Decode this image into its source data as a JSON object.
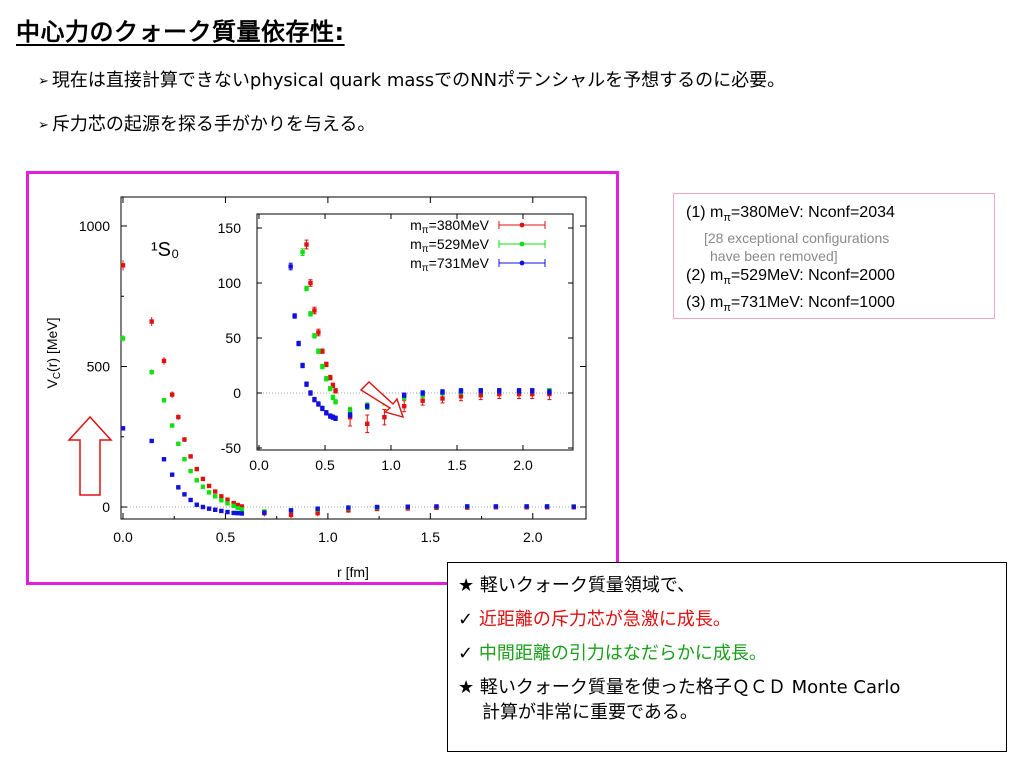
{
  "slide": {
    "title": "中心力のクォーク質量依存性:",
    "bullet_mark": "➢",
    "bullets": [
      "現在は直接計算できないphysical quark massでのNNポテンシャルを予想するのに必要。",
      "斥力芯の起源を探る手がかりを与える。"
    ]
  },
  "config_box": {
    "line1_prefix": "(1) m",
    "line1_sub": "π",
    "line1_suffix": "=380MeV: Nconf=2034",
    "note1": "[28 exceptional configurations",
    "note2": "have  been removed]",
    "line2_prefix": "(2) m",
    "line2_sub": "π",
    "line2_suffix": "=529MeV: Nconf=2000",
    "line3_prefix": "(3) m",
    "line3_sub": "π",
    "line3_suffix": "=731MeV: Nconf=1000"
  },
  "notes_box": {
    "star": "★",
    "check": "✓",
    "line1": "軽いクォーク質量領域で、",
    "line2": "近距離の斥力芯が急激に成長。",
    "line3": "中間距離の引力はなだらかに成長。",
    "line4": "軽いクォーク質量を使った格子ＱＣＤ Monte Carlo",
    "line5": "計算が非常に重要である。"
  },
  "chart_data": {
    "type": "scatter",
    "channel_label": "¹S₀",
    "xlabel": "r [fm]",
    "ylabel": "V_C(r) [MeV]",
    "xlim": [
      0.0,
      2.25
    ],
    "ylim": [
      -70,
      1100
    ],
    "x_ticks": [
      "0.0",
      "0.5",
      "1.0",
      "1.5",
      "2.0"
    ],
    "y_ticks": [
      "0",
      "500",
      "1000"
    ],
    "legend": [
      {
        "prefix": "m",
        "sub": "π",
        "suffix": "=380MeV",
        "color": "#e01010"
      },
      {
        "prefix": "m",
        "sub": "π",
        "suffix": "=529MeV",
        "color": "#10e010"
      },
      {
        "prefix": "m",
        "sub": "π",
        "suffix": "=731MeV",
        "color": "#1010e0"
      }
    ],
    "series": [
      {
        "color": "#e01010",
        "points": [
          [
            0.0,
            860
          ],
          [
            0.14,
            660
          ],
          [
            0.2,
            520
          ],
          [
            0.24,
            400
          ],
          [
            0.27,
            320
          ],
          [
            0.3,
            240
          ],
          [
            0.33,
            180
          ],
          [
            0.36,
            135
          ],
          [
            0.39,
            100
          ],
          [
            0.42,
            75
          ],
          [
            0.45,
            55
          ],
          [
            0.48,
            38
          ],
          [
            0.51,
            26
          ],
          [
            0.54,
            14
          ],
          [
            0.56,
            7
          ],
          [
            0.58,
            2
          ],
          [
            0.69,
            -22
          ],
          [
            0.82,
            -28
          ],
          [
            0.95,
            -22
          ],
          [
            1.1,
            -12
          ],
          [
            1.24,
            -7
          ],
          [
            1.39,
            -5
          ],
          [
            1.53,
            -3
          ],
          [
            1.68,
            -2
          ],
          [
            1.82,
            -1
          ],
          [
            1.97,
            -1
          ],
          [
            2.07,
            -1
          ],
          [
            2.2,
            -1
          ]
        ],
        "err": [
          [
            0.0,
            15
          ],
          [
            0.14,
            12
          ],
          [
            0.2,
            10
          ],
          [
            0.24,
            8
          ],
          [
            0.27,
            6
          ],
          [
            0.3,
            5
          ],
          [
            0.33,
            4
          ],
          [
            0.36,
            4
          ],
          [
            0.39,
            3
          ],
          [
            0.42,
            3
          ],
          [
            0.45,
            3
          ],
          [
            0.48,
            2
          ],
          [
            0.51,
            2
          ],
          [
            0.54,
            2
          ],
          [
            0.56,
            2
          ],
          [
            0.58,
            2
          ],
          [
            0.69,
            8
          ],
          [
            0.82,
            8
          ],
          [
            0.95,
            7
          ],
          [
            1.1,
            5
          ],
          [
            1.24,
            4
          ],
          [
            1.39,
            4
          ],
          [
            1.53,
            4
          ],
          [
            1.68,
            4
          ],
          [
            1.82,
            4
          ],
          [
            1.97,
            4
          ],
          [
            2.07,
            4
          ],
          [
            2.2,
            5
          ]
        ]
      },
      {
        "color": "#10e010",
        "points": [
          [
            0.0,
            600
          ],
          [
            0.14,
            480
          ],
          [
            0.2,
            380
          ],
          [
            0.24,
            290
          ],
          [
            0.27,
            225
          ],
          [
            0.3,
            170
          ],
          [
            0.33,
            128
          ],
          [
            0.36,
            95
          ],
          [
            0.39,
            72
          ],
          [
            0.42,
            52
          ],
          [
            0.45,
            38
          ],
          [
            0.48,
            24
          ],
          [
            0.51,
            13
          ],
          [
            0.54,
            4
          ],
          [
            0.56,
            -4
          ],
          [
            0.58,
            -8
          ],
          [
            0.69,
            -16
          ],
          [
            0.82,
            -12
          ],
          [
            0.95,
            -8
          ],
          [
            1.1,
            -4
          ],
          [
            1.24,
            -2
          ],
          [
            1.39,
            0
          ],
          [
            1.53,
            1
          ],
          [
            1.68,
            2
          ],
          [
            1.82,
            2
          ],
          [
            1.97,
            2
          ],
          [
            2.07,
            2
          ],
          [
            2.2,
            2
          ]
        ],
        "err": [
          [
            0.0,
            8
          ],
          [
            0.14,
            6
          ],
          [
            0.2,
            5
          ],
          [
            0.24,
            4
          ],
          [
            0.27,
            3
          ],
          [
            0.3,
            3
          ],
          [
            0.33,
            3
          ],
          [
            0.36,
            2
          ],
          [
            0.39,
            2
          ],
          [
            0.42,
            2
          ],
          [
            0.45,
            2
          ],
          [
            0.48,
            2
          ],
          [
            0.51,
            2
          ],
          [
            0.54,
            2
          ],
          [
            0.56,
            2
          ],
          [
            0.58,
            2
          ],
          [
            0.69,
            3
          ],
          [
            0.82,
            3
          ],
          [
            0.95,
            3
          ],
          [
            1.1,
            2
          ],
          [
            1.24,
            2
          ],
          [
            1.39,
            2
          ],
          [
            1.53,
            2
          ],
          [
            1.68,
            2
          ],
          [
            1.82,
            2
          ],
          [
            1.97,
            2
          ],
          [
            2.07,
            2
          ],
          [
            2.2,
            2
          ]
        ]
      },
      {
        "color": "#1010e0",
        "points": [
          [
            0.0,
            280
          ],
          [
            0.14,
            235
          ],
          [
            0.2,
            170
          ],
          [
            0.24,
            115
          ],
          [
            0.27,
            70
          ],
          [
            0.3,
            45
          ],
          [
            0.33,
            25
          ],
          [
            0.36,
            8
          ],
          [
            0.39,
            0
          ],
          [
            0.42,
            -6
          ],
          [
            0.45,
            -10
          ],
          [
            0.48,
            -14
          ],
          [
            0.51,
            -18
          ],
          [
            0.54,
            -21
          ],
          [
            0.56,
            -22
          ],
          [
            0.58,
            -23
          ],
          [
            0.69,
            -20
          ],
          [
            0.82,
            -12
          ],
          [
            0.95,
            -6
          ],
          [
            1.1,
            -2
          ],
          [
            1.24,
            0
          ],
          [
            1.39,
            1
          ],
          [
            1.53,
            2
          ],
          [
            1.68,
            2
          ],
          [
            1.82,
            2
          ],
          [
            1.97,
            2
          ],
          [
            2.07,
            2
          ],
          [
            2.2,
            1
          ]
        ],
        "err": [
          [
            0.0,
            4
          ],
          [
            0.14,
            3
          ],
          [
            0.2,
            3
          ],
          [
            0.24,
            3
          ],
          [
            0.27,
            2
          ],
          [
            0.3,
            2
          ],
          [
            0.33,
            2
          ],
          [
            0.36,
            2
          ],
          [
            0.39,
            2
          ],
          [
            0.42,
            2
          ],
          [
            0.45,
            2
          ],
          [
            0.48,
            2
          ],
          [
            0.51,
            2
          ],
          [
            0.54,
            2
          ],
          [
            0.56,
            2
          ],
          [
            0.58,
            2
          ],
          [
            0.69,
            2
          ],
          [
            0.82,
            2
          ],
          [
            0.95,
            2
          ],
          [
            1.1,
            2
          ],
          [
            1.24,
            2
          ],
          [
            1.39,
            2
          ],
          [
            1.53,
            2
          ],
          [
            1.68,
            2
          ],
          [
            1.82,
            2
          ],
          [
            1.97,
            2
          ],
          [
            2.07,
            2
          ],
          [
            2.2,
            2
          ]
        ]
      }
    ],
    "inset": {
      "xlim": [
        0.0,
        2.25
      ],
      "ylim": [
        -50,
        150
      ],
      "x_ticks": [
        "0.0",
        "0.5",
        "1.0",
        "1.5",
        "2.0"
      ],
      "y_ticks": [
        "-50",
        "0",
        "50",
        "100",
        "150"
      ]
    }
  }
}
